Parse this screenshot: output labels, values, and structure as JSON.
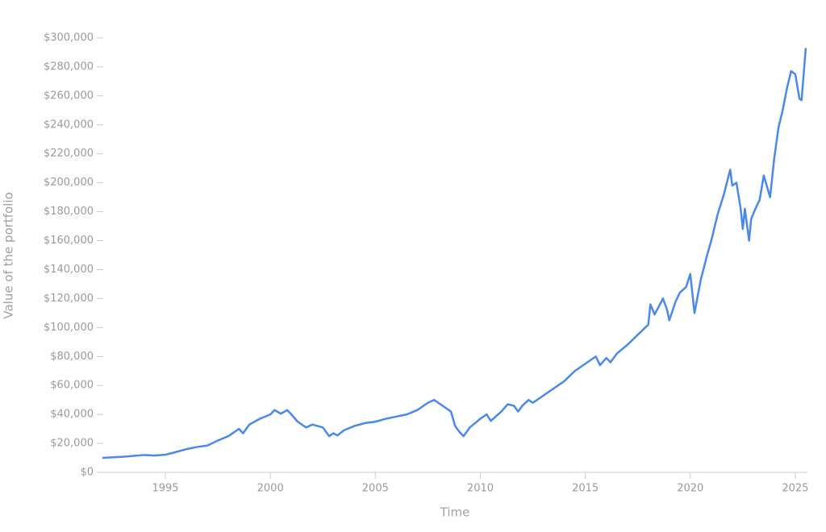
{
  "chart_data": {
    "type": "line",
    "x_label": "Time",
    "y_label": "Value of the portfolio",
    "xlim": [
      1992.04,
      2025.58
    ],
    "xticks": [
      1995,
      2000,
      2005,
      2010,
      2015,
      2020,
      2025
    ],
    "ylim": [
      0,
      300000
    ],
    "yticks": [
      {
        "value": 0,
        "label": "$0"
      },
      {
        "value": 20000,
        "label": "$20,000"
      },
      {
        "value": 40000,
        "label": "$40,000"
      },
      {
        "value": 60000,
        "label": "$60,000"
      },
      {
        "value": 80000,
        "label": "$80,000"
      },
      {
        "value": 100000,
        "label": "$100,000"
      },
      {
        "value": 120000,
        "label": "$120,000"
      },
      {
        "value": 140000,
        "label": "$140,000"
      },
      {
        "value": 160000,
        "label": "$160,000"
      },
      {
        "value": 180000,
        "label": "$180,000"
      },
      {
        "value": 200000,
        "label": "$200,000"
      },
      {
        "value": 220000,
        "label": "$220,000"
      },
      {
        "value": 240000,
        "label": "$240,000"
      },
      {
        "value": 260000,
        "label": "$260,000"
      },
      {
        "value": 280000,
        "label": "$280,000"
      },
      {
        "value": 300000,
        "label": "$300,000"
      }
    ],
    "grid": false,
    "color": "#4a88ea",
    "x": [
      1992.0,
      1993.0,
      1994.0,
      1994.5,
      1995.0,
      1995.5,
      1996.0,
      1996.5,
      1997.0,
      1997.5,
      1998.0,
      1998.5,
      1998.7,
      1999.0,
      1999.5,
      2000.0,
      2000.2,
      2000.5,
      2000.8,
      2001.0,
      2001.3,
      2001.7,
      2002.0,
      2002.5,
      2002.8,
      2003.0,
      2003.2,
      2003.5,
      2004.0,
      2004.5,
      2005.0,
      2005.5,
      2006.0,
      2006.5,
      2007.0,
      2007.5,
      2007.8,
      2008.0,
      2008.3,
      2008.6,
      2008.8,
      2009.0,
      2009.2,
      2009.5,
      2010.0,
      2010.3,
      2010.5,
      2011.0,
      2011.3,
      2011.6,
      2011.8,
      2012.0,
      2012.3,
      2012.5,
      2013.0,
      2013.5,
      2014.0,
      2014.5,
      2015.0,
      2015.5,
      2015.7,
      2016.0,
      2016.2,
      2016.5,
      2017.0,
      2017.5,
      2018.0,
      2018.1,
      2018.3,
      2018.7,
      2018.9,
      2019.0,
      2019.3,
      2019.5,
      2019.8,
      2020.0,
      2020.2,
      2020.5,
      2020.8,
      2021.0,
      2021.3,
      2021.6,
      2021.9,
      2022.0,
      2022.2,
      2022.4,
      2022.5,
      2022.6,
      2022.8,
      2022.9,
      2023.1,
      2023.3,
      2023.5,
      2023.8,
      2024.0,
      2024.2,
      2024.4,
      2024.6,
      2024.8,
      2025.0,
      2025.2,
      2025.3,
      2025.5
    ],
    "values": [
      10000,
      10800,
      12000,
      11600,
      12200,
      14000,
      16000,
      17500,
      18500,
      22000,
      25000,
      30000,
      27000,
      33000,
      37000,
      40000,
      43000,
      40500,
      43000,
      40000,
      35000,
      31000,
      33000,
      31000,
      25000,
      27000,
      25500,
      29000,
      32000,
      34000,
      35000,
      37000,
      38500,
      40000,
      43000,
      48000,
      50000,
      48000,
      45000,
      42000,
      32000,
      28000,
      25000,
      31000,
      37000,
      40000,
      35500,
      42000,
      47000,
      46000,
      42000,
      46000,
      50000,
      48000,
      53000,
      58000,
      63000,
      70000,
      75000,
      80000,
      74000,
      79000,
      76000,
      82000,
      88000,
      95000,
      102000,
      116000,
      109000,
      120000,
      112000,
      105000,
      118000,
      124000,
      128000,
      137000,
      110000,
      133000,
      150000,
      160000,
      178000,
      192000,
      209000,
      198000,
      200000,
      182000,
      168000,
      182000,
      160000,
      175000,
      182000,
      188000,
      205000,
      190000,
      217000,
      238000,
      250000,
      265000,
      277000,
      275000,
      258000,
      257000,
      293000
    ]
  }
}
